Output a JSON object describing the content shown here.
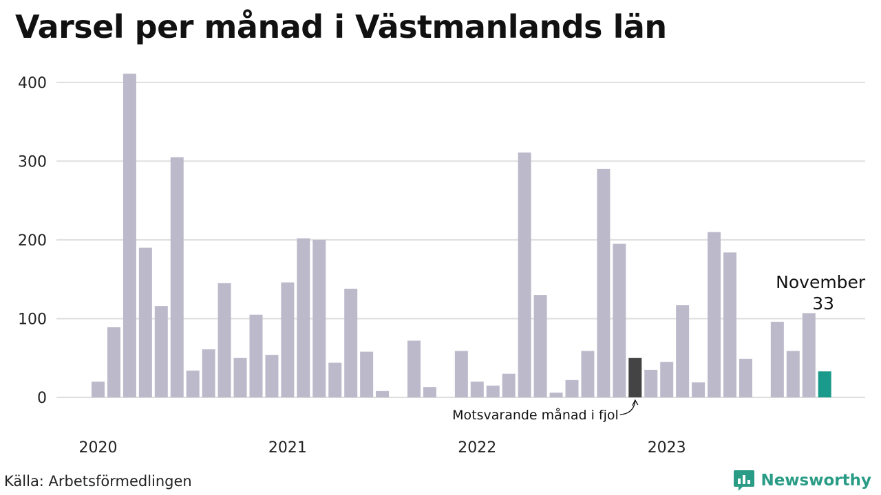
{
  "chart_data": {
    "type": "bar",
    "title": "Varsel per månad i Västmanlands län",
    "xlabel": "",
    "ylabel": "",
    "ylim": [
      0,
      420
    ],
    "yticks": [
      0,
      100,
      200,
      300,
      400
    ],
    "grid": true,
    "x_tick_labels": [
      "2020",
      "2021",
      "2022",
      "2023"
    ],
    "categories": [
      "2020-01",
      "2020-02",
      "2020-03",
      "2020-04",
      "2020-05",
      "2020-06",
      "2020-07",
      "2020-08",
      "2020-09",
      "2020-10",
      "2020-11",
      "2020-12",
      "2021-01",
      "2021-02",
      "2021-03",
      "2021-04",
      "2021-05",
      "2021-06",
      "2021-07",
      "2021-08",
      "2021-09",
      "2021-10",
      "2021-11",
      "2021-12",
      "2022-01",
      "2022-02",
      "2022-03",
      "2022-04",
      "2022-05",
      "2022-06",
      "2022-07",
      "2022-08",
      "2022-09",
      "2022-10",
      "2022-11",
      "2022-12",
      "2023-01",
      "2023-02",
      "2023-03",
      "2023-04",
      "2023-05",
      "2023-06",
      "2023-07",
      "2023-08",
      "2023-09",
      "2023-10",
      "2023-11"
    ],
    "values": [
      20,
      89,
      411,
      190,
      116,
      305,
      34,
      61,
      145,
      50,
      105,
      54,
      146,
      202,
      200,
      44,
      138,
      58,
      8,
      0,
      72,
      13,
      0,
      59,
      20,
      15,
      30,
      311,
      130,
      6,
      22,
      59,
      290,
      195,
      50,
      35,
      45,
      117,
      19,
      210,
      184,
      49,
      0,
      96,
      59,
      107,
      33
    ],
    "highlights": {
      "previous_year_index": 34,
      "current_index": 46
    },
    "annotations": {
      "current_label": "November",
      "current_value": "33",
      "previous_year_label": "Motsvarande månad i fjol"
    },
    "colors": {
      "bar": "#bcbaca",
      "previous_year": "#444444",
      "current": "#1a9a8a",
      "grid": "#dddddd"
    }
  },
  "footer": {
    "source": "Källa: Arbetsförmedlingen",
    "brand": "Newsworthy"
  }
}
